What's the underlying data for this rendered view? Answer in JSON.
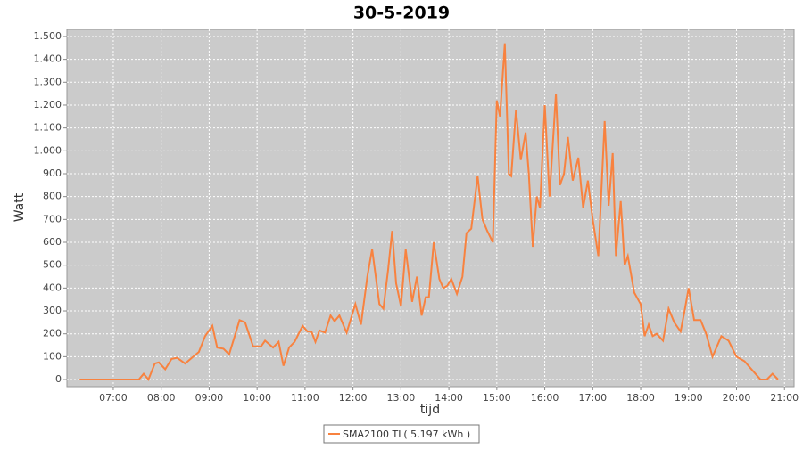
{
  "chart_data": {
    "type": "line",
    "title": "30-5-2019",
    "x_label": "tijd",
    "y_label": "Watt",
    "xlim": [
      "06:02",
      "21:12"
    ],
    "xticks": [
      "07:00",
      "08:00",
      "09:00",
      "10:00",
      "11:00",
      "12:00",
      "13:00",
      "14:00",
      "15:00",
      "16:00",
      "17:00",
      "18:00",
      "19:00",
      "20:00",
      "21:00"
    ],
    "ylim": [
      -31,
      1531
    ],
    "yticks": [
      0,
      100,
      200,
      300,
      400,
      500,
      600,
      700,
      800,
      900,
      {
        "value": 1000,
        "label": "1.000"
      },
      {
        "value": 1100,
        "label": "1.100"
      },
      {
        "value": 1200,
        "label": "1.200"
      },
      {
        "value": 1300,
        "label": "1.300"
      },
      {
        "value": 1400,
        "label": "1.400"
      },
      {
        "value": 1500,
        "label": "1.500"
      }
    ],
    "grid": true,
    "x": [
      "06:18",
      "07:32",
      "07:38",
      "07:44",
      "07:52",
      "07:57",
      "08:05",
      "08:13",
      "08:20",
      "08:30",
      "08:40",
      "08:47",
      "08:55",
      "09:04",
      "09:10",
      "09:18",
      "09:25",
      "09:32",
      "09:38",
      "09:45",
      "09:55",
      "10:05",
      "10:10",
      "10:20",
      "10:27",
      "10:33",
      "10:40",
      "10:47",
      "10:57",
      "11:03",
      "11:08",
      "11:13",
      "11:18",
      "11:25",
      "11:32",
      "11:37",
      "11:43",
      "11:52",
      "12:03",
      "12:10",
      "12:18",
      "12:24",
      "12:33",
      "12:38",
      "12:44",
      "12:49",
      "12:54",
      "13:00",
      "13:06",
      "13:14",
      "13:20",
      "13:26",
      "13:31",
      "13:35",
      "13:41",
      "13:48",
      "13:53",
      "13:58",
      "14:03",
      "14:10",
      "14:17",
      "14:22",
      "14:28",
      "14:36",
      "14:42",
      "14:48",
      "14:55",
      "15:00",
      "15:04",
      "15:10",
      "15:15",
      "15:18",
      "15:24",
      "15:30",
      "15:36",
      "15:40",
      "15:45",
      "15:50",
      "15:54",
      "16:00",
      "16:06",
      "16:14",
      "16:19",
      "16:24",
      "16:29",
      "16:35",
      "16:42",
      "16:48",
      "16:54",
      "17:00",
      "17:07",
      "17:15",
      "17:20",
      "17:25",
      "17:29",
      "17:35",
      "17:40",
      "17:44",
      "17:52",
      "18:00",
      "18:05",
      "18:10",
      "18:15",
      "18:20",
      "18:28",
      "18:35",
      "18:42",
      "18:50",
      "18:55",
      "19:00",
      "19:07",
      "19:15",
      "19:22",
      "19:30",
      "19:41",
      "19:50",
      "20:00",
      "20:10",
      "20:20",
      "20:30",
      "20:38",
      "20:45",
      "20:52"
    ],
    "series": [
      {
        "name": "SMA2100 TL( 5,197 kWh )",
        "color": "#f8823f",
        "values": [
          0,
          0,
          25,
          0,
          70,
          75,
          45,
          90,
          95,
          70,
          100,
          120,
          190,
          235,
          140,
          135,
          110,
          190,
          260,
          250,
          145,
          145,
          170,
          140,
          165,
          60,
          140,
          165,
          235,
          210,
          210,
          165,
          215,
          205,
          280,
          255,
          280,
          205,
          330,
          240,
          450,
          570,
          330,
          310,
          480,
          650,
          420,
          320,
          570,
          340,
          450,
          280,
          360,
          360,
          600,
          440,
          400,
          410,
          440,
          375,
          450,
          640,
          660,
          890,
          700,
          650,
          600,
          1220,
          1150,
          1470,
          900,
          890,
          1180,
          960,
          1080,
          900,
          580,
          800,
          750,
          1200,
          800,
          1250,
          850,
          900,
          1060,
          870,
          970,
          750,
          870,
          700,
          540,
          1130,
          760,
          990,
          540,
          780,
          500,
          540,
          380,
          330,
          190,
          240,
          190,
          200,
          170,
          310,
          250,
          210,
          300,
          400,
          260,
          260,
          200,
          100,
          190,
          170,
          100,
          80,
          40,
          0,
          0,
          25,
          0
        ]
      }
    ]
  }
}
